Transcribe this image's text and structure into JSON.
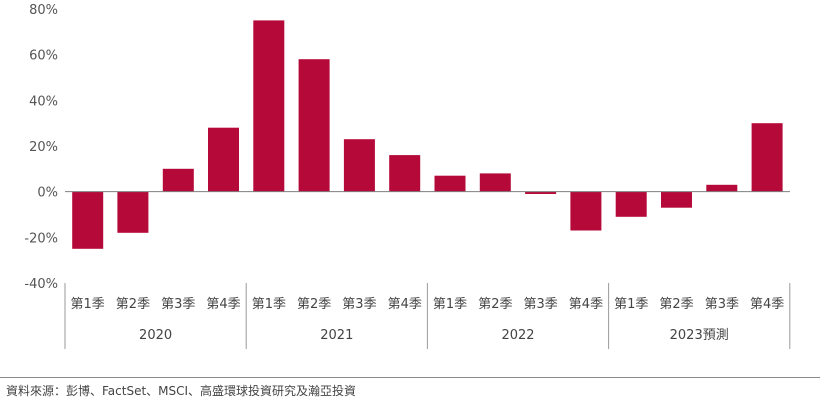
{
  "chart_data": {
    "type": "bar",
    "colors": {
      "bar": "#b5093a",
      "axis": "#7f7f7f",
      "separator": "#9a9a9a"
    },
    "ylim": [
      -40,
      80
    ],
    "yticks": [
      80,
      60,
      40,
      20,
      0,
      -20,
      -40
    ],
    "ytick_labels": [
      "80%",
      "60%",
      "40%",
      "20%",
      "0%",
      "-20%",
      "-40%"
    ],
    "grid": false,
    "groups": [
      {
        "label": "2020",
        "quarters": [
          "第1季",
          "第2季",
          "第3季",
          "第4季"
        ],
        "values": [
          -25,
          -18,
          10,
          28
        ]
      },
      {
        "label": "2021",
        "quarters": [
          "第1季",
          "第2季",
          "第3季",
          "第4季"
        ],
        "values": [
          75,
          58,
          23,
          16
        ]
      },
      {
        "label": "2022",
        "quarters": [
          "第1季",
          "第2季",
          "第3季",
          "第4季"
        ],
        "values": [
          7,
          8,
          -1,
          -17
        ]
      },
      {
        "label": "2023預測",
        "quarters": [
          "第1季",
          "第2季",
          "第3季",
          "第4季"
        ],
        "values": [
          -11,
          -7,
          3,
          30
        ]
      }
    ]
  },
  "footer": {
    "source": "資料來源：彭博、FactSet、MSCI、高盛環球投資研究及瀚亞投資"
  }
}
